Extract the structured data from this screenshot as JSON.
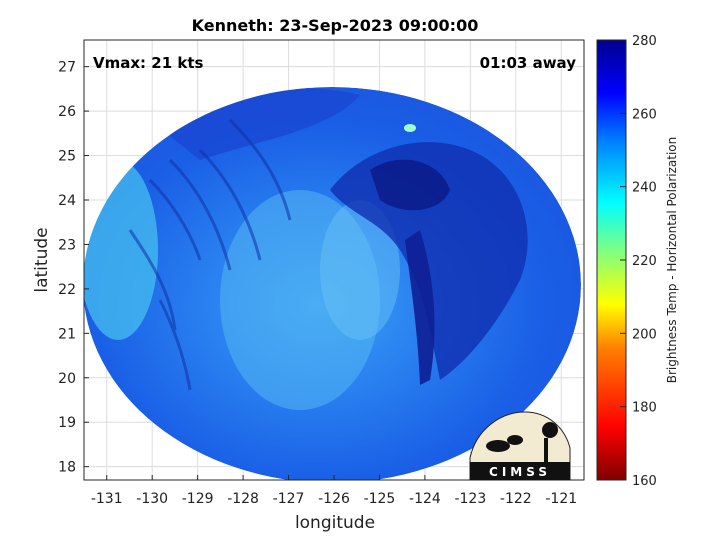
{
  "title": "Kenneth: 23-Sep-2023 09:00:00",
  "vmax_label": "Vmax: 21 kts",
  "time_label": "01:03 away",
  "xlabel": "longitude",
  "ylabel": "latitude",
  "colorbar_label": "Brightness Temp - Horizontal Polarization",
  "logo_text": "CIMSS",
  "map_data": {
    "lon_range": [
      -131.5,
      -120.5
    ],
    "lat_range": [
      17.7,
      27.6
    ],
    "lon_ticks": [
      -131,
      -130,
      -129,
      -128,
      -127,
      -126,
      -125,
      -124,
      -123,
      -122,
      -121
    ],
    "lat_ticks": [
      18,
      19,
      20,
      21,
      22,
      23,
      24,
      25,
      26,
      27
    ],
    "grid": true,
    "swath_center": [
      -126.4,
      22.4
    ],
    "colorbar": {
      "range": [
        160,
        280
      ],
      "ticks": [
        160,
        180,
        200,
        220,
        240,
        260,
        280
      ],
      "colors": [
        "#7f0000",
        "#ff0000",
        "#ff8000",
        "#ffff00",
        "#80ff80",
        "#00ffff",
        "#0080ff",
        "#0000ff",
        "#00008f"
      ]
    }
  }
}
